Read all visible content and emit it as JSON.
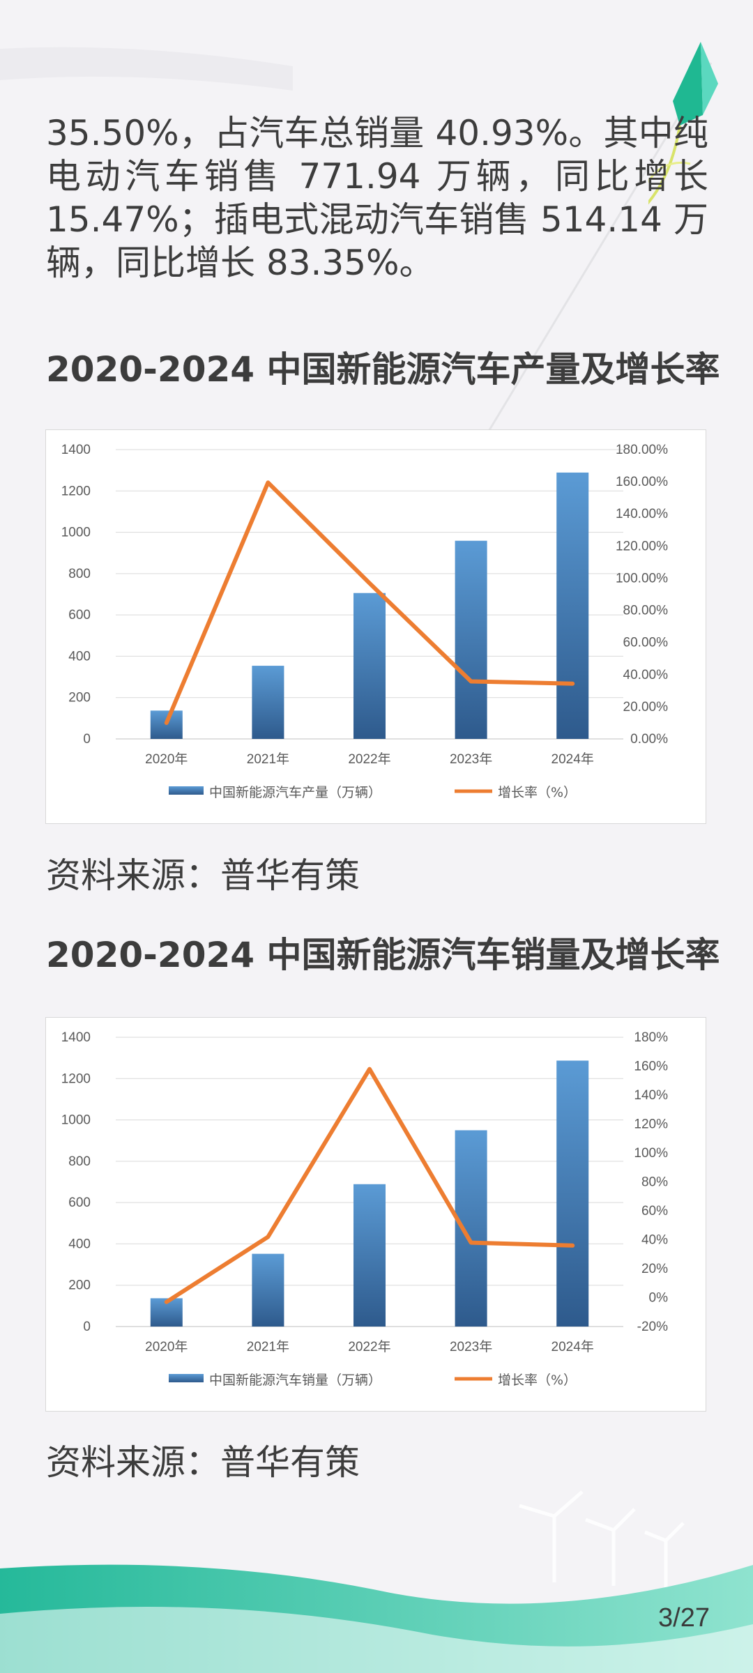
{
  "intro": {
    "text": "35.50%，占汽车总销量 40.93%。其中纯电动汽车销售 771.94 万辆，同比增长 15.47%；插电式混动汽车销售 514.14 万辆，同比增长 83.35%。"
  },
  "production": {
    "title": "2020-2024 中国新能源汽车产量及增长率",
    "source": "资料来源：普华有策"
  },
  "sales": {
    "title": "2020-2024 中国新能源汽车销量及增长率",
    "source": "资料来源：普华有策"
  },
  "page": {
    "number": "3/27"
  },
  "colors": {
    "bar_top": "#5b9bd5",
    "bar_bottom": "#2e5a8c",
    "line": "#ed7d31",
    "teal": "#2ec4a5"
  },
  "chart_data": [
    {
      "type": "bar",
      "title": "2020-2024 中国新能源汽车产量及增长率",
      "categories": [
        "2020年",
        "2021年",
        "2022年",
        "2023年",
        "2024年"
      ],
      "series": [
        {
          "name": "中国新能源汽车产量（万辆）",
          "type": "bar",
          "axis": "left",
          "values": [
            137,
            354,
            706,
            959,
            1289
          ]
        },
        {
          "name": "增长率（%）",
          "type": "line",
          "axis": "right",
          "values": [
            10.0,
            159.5,
            96.9,
            35.8,
            34.4
          ]
        }
      ],
      "left_ticks": [
        "0",
        "200",
        "400",
        "600",
        "800",
        "1000",
        "1200",
        "1400"
      ],
      "right_ticks": [
        "0.00%",
        "20.00%",
        "40.00%",
        "60.00%",
        "80.00%",
        "100.00%",
        "120.00%",
        "140.00%",
        "160.00%",
        "180.00%"
      ],
      "ylim_left": [
        0,
        1400
      ],
      "ylim_right": [
        0,
        180
      ],
      "grid": true,
      "legend": "bottom"
    },
    {
      "type": "bar",
      "title": "2020-2024 中国新能源汽车销量及增长率",
      "categories": [
        "2020年",
        "2021年",
        "2022年",
        "2023年",
        "2024年"
      ],
      "series": [
        {
          "name": "中国新能源汽车销量（万辆）",
          "type": "bar",
          "axis": "left",
          "values": [
            137,
            352,
            689,
            950,
            1287
          ]
        },
        {
          "name": "增长率（%）",
          "type": "line",
          "axis": "right",
          "values": [
            -3,
            42,
            158,
            38,
            36
          ]
        }
      ],
      "left_ticks": [
        "0",
        "200",
        "400",
        "600",
        "800",
        "1000",
        "1200",
        "1400"
      ],
      "right_ticks": [
        "-20%",
        "0%",
        "20%",
        "40%",
        "60%",
        "80%",
        "100%",
        "120%",
        "140%",
        "160%",
        "180%"
      ],
      "ylim_left": [
        0,
        1400
      ],
      "ylim_right": [
        -20,
        180
      ],
      "grid": true,
      "legend": "bottom"
    }
  ]
}
